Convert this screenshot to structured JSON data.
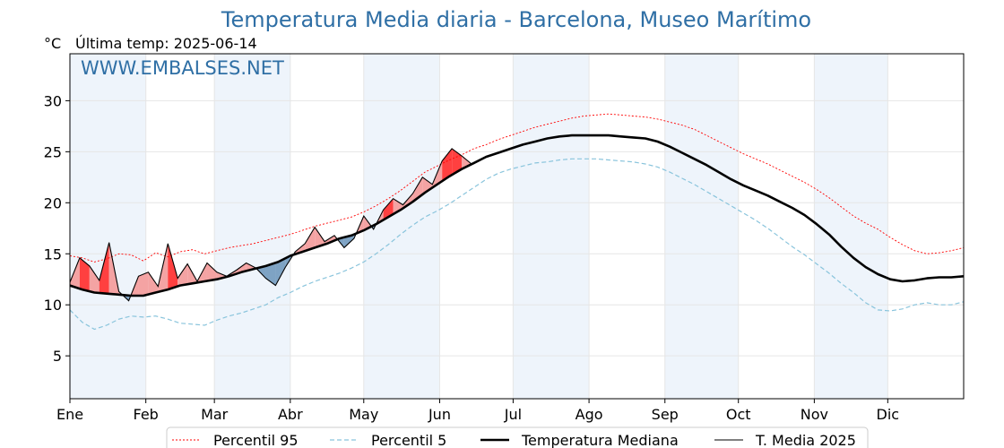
{
  "title": "Temperatura Media diaria - Barcelona, Museo Marítimo",
  "unit": "°C",
  "last_temp_label": "Última temp: 2025-06-14",
  "watermark": "WWW.EMBALSES.NET",
  "chart_data": {
    "type": "line",
    "title": "Temperatura Media diaria - Barcelona, Museo Marítimo",
    "ylabel": "°C",
    "ylim": [
      0.8,
      34.6
    ],
    "xlim": [
      1,
      366
    ],
    "yticks": [
      5,
      10,
      15,
      20,
      25,
      30
    ],
    "months": [
      "Ene",
      "Feb",
      "Mar",
      "Abr",
      "May",
      "Jun",
      "Jul",
      "Ago",
      "Sep",
      "Oct",
      "Nov",
      "Dic"
    ],
    "month_start_days": [
      1,
      32,
      60,
      91,
      121,
      152,
      182,
      213,
      244,
      274,
      305,
      335
    ],
    "grid": true,
    "legend_position": "bottom",
    "colors": {
      "p95": "#ff0000",
      "p5": "#89c4dc",
      "median": "#000000",
      "current": "#000000",
      "fill_above": "#f4a3a3",
      "fill_above_dark": "#ff4040",
      "fill_below": "#7ea3c4",
      "month_band": "#eef4fb",
      "title": "#2f6fa5"
    },
    "series": [
      {
        "name": "Percentil 95",
        "style": "dotted-red",
        "x": [
          1,
          6,
          11,
          16,
          21,
          26,
          31,
          36,
          41,
          46,
          51,
          56,
          61,
          66,
          71,
          76,
          81,
          86,
          91,
          96,
          101,
          106,
          111,
          116,
          121,
          126,
          131,
          136,
          141,
          146,
          151,
          156,
          161,
          166,
          171,
          176,
          181,
          186,
          191,
          196,
          201,
          206,
          211,
          216,
          221,
          226,
          231,
          236,
          241,
          246,
          251,
          256,
          261,
          266,
          271,
          276,
          281,
          286,
          291,
          296,
          301,
          306,
          311,
          316,
          321,
          326,
          331,
          336,
          341,
          346,
          351,
          356,
          361,
          366
        ],
        "values": [
          14.8,
          14.6,
          14.2,
          14.5,
          15.0,
          14.9,
          14.3,
          15.1,
          14.7,
          15.2,
          15.4,
          15.0,
          15.3,
          15.6,
          15.8,
          16.0,
          16.3,
          16.6,
          16.9,
          17.3,
          17.7,
          18.0,
          18.3,
          18.6,
          19.1,
          19.7,
          20.4,
          21.2,
          22.1,
          23.0,
          23.6,
          24.2,
          24.7,
          25.3,
          25.7,
          26.2,
          26.6,
          27.0,
          27.4,
          27.7,
          28.0,
          28.3,
          28.5,
          28.6,
          28.7,
          28.6,
          28.5,
          28.4,
          28.2,
          27.9,
          27.6,
          27.2,
          26.6,
          26.0,
          25.4,
          24.8,
          24.3,
          23.8,
          23.2,
          22.6,
          22.0,
          21.3,
          20.5,
          19.6,
          18.7,
          18.0,
          17.4,
          16.6,
          15.9,
          15.3,
          15.0,
          15.1,
          15.3,
          15.6
        ]
      },
      {
        "name": "Percentil 5",
        "style": "dashed-lightblue",
        "x": [
          1,
          6,
          11,
          16,
          21,
          26,
          31,
          36,
          41,
          46,
          51,
          56,
          61,
          66,
          71,
          76,
          81,
          86,
          91,
          96,
          101,
          106,
          111,
          116,
          121,
          126,
          131,
          136,
          141,
          146,
          151,
          156,
          161,
          166,
          171,
          176,
          181,
          186,
          191,
          196,
          201,
          206,
          211,
          216,
          221,
          226,
          231,
          236,
          241,
          246,
          251,
          256,
          261,
          266,
          271,
          276,
          281,
          286,
          291,
          296,
          301,
          306,
          311,
          316,
          321,
          326,
          331,
          336,
          341,
          346,
          351,
          356,
          361,
          366
        ],
        "values": [
          9.5,
          8.3,
          7.6,
          8.0,
          8.6,
          8.9,
          8.8,
          8.9,
          8.6,
          8.2,
          8.1,
          8.0,
          8.5,
          8.9,
          9.2,
          9.6,
          10.0,
          10.7,
          11.2,
          11.8,
          12.3,
          12.7,
          13.1,
          13.6,
          14.2,
          15.0,
          15.9,
          16.9,
          17.8,
          18.6,
          19.2,
          19.9,
          20.7,
          21.5,
          22.3,
          22.9,
          23.3,
          23.6,
          23.9,
          24.0,
          24.2,
          24.3,
          24.3,
          24.3,
          24.2,
          24.1,
          24.0,
          23.8,
          23.5,
          23.0,
          22.4,
          21.8,
          21.1,
          20.4,
          19.7,
          19.0,
          18.3,
          17.5,
          16.6,
          15.7,
          14.9,
          14.0,
          13.1,
          12.1,
          11.2,
          10.2,
          9.5,
          9.4,
          9.6,
          10.0,
          10.2,
          10.0,
          10.0,
          10.3
        ]
      },
      {
        "name": "Temperatura Mediana",
        "style": "thick-black",
        "x": [
          1,
          6,
          11,
          16,
          21,
          26,
          31,
          36,
          41,
          46,
          51,
          56,
          61,
          66,
          71,
          76,
          81,
          86,
          91,
          96,
          101,
          106,
          111,
          116,
          121,
          126,
          131,
          136,
          141,
          146,
          151,
          156,
          161,
          166,
          171,
          176,
          181,
          186,
          191,
          196,
          201,
          206,
          211,
          216,
          221,
          226,
          231,
          236,
          241,
          246,
          251,
          256,
          261,
          266,
          271,
          276,
          281,
          286,
          291,
          296,
          301,
          306,
          311,
          316,
          321,
          326,
          331,
          336,
          341,
          346,
          351,
          356,
          361,
          366
        ],
        "values": [
          11.9,
          11.5,
          11.2,
          11.1,
          11.0,
          10.9,
          10.9,
          11.2,
          11.5,
          11.9,
          12.1,
          12.3,
          12.5,
          12.8,
          13.2,
          13.5,
          13.8,
          14.2,
          14.8,
          15.2,
          15.6,
          16.0,
          16.5,
          16.8,
          17.3,
          17.9,
          18.6,
          19.3,
          20.1,
          21.0,
          21.8,
          22.6,
          23.3,
          23.9,
          24.5,
          24.9,
          25.3,
          25.7,
          26.0,
          26.3,
          26.5,
          26.6,
          26.6,
          26.6,
          26.6,
          26.5,
          26.4,
          26.3,
          26.0,
          25.5,
          24.9,
          24.3,
          23.7,
          23.0,
          22.3,
          21.7,
          21.2,
          20.7,
          20.1,
          19.5,
          18.8,
          17.9,
          16.9,
          15.7,
          14.6,
          13.7,
          13.0,
          12.5,
          12.3,
          12.4,
          12.6,
          12.7,
          12.7,
          12.8
        ]
      },
      {
        "name": "T. Media 2025",
        "style": "thin-black",
        "x": [
          1,
          5,
          9,
          13,
          17,
          21,
          25,
          29,
          33,
          37,
          41,
          45,
          49,
          53,
          57,
          61,
          65,
          69,
          73,
          77,
          81,
          85,
          89,
          93,
          97,
          101,
          105,
          109,
          113,
          117,
          121,
          125,
          129,
          133,
          137,
          141,
          145,
          149,
          153,
          157,
          161,
          165
        ],
        "values": [
          12.2,
          14.6,
          13.8,
          12.4,
          16.1,
          11.3,
          10.4,
          12.8,
          13.2,
          11.8,
          16.0,
          12.6,
          14.0,
          12.3,
          14.1,
          13.2,
          12.8,
          13.4,
          14.1,
          13.6,
          12.6,
          11.9,
          13.7,
          15.2,
          16.0,
          17.6,
          16.2,
          16.8,
          15.6,
          16.5,
          18.7,
          17.4,
          19.3,
          20.4,
          19.8,
          20.9,
          22.5,
          21.8,
          24.1,
          25.3,
          24.6,
          23.8
        ]
      }
    ]
  },
  "legend": [
    {
      "label": "Percentil 95",
      "style": "dotted-red"
    },
    {
      "label": "Percentil 5",
      "style": "dashed-lightblue"
    },
    {
      "label": "Temperatura Mediana",
      "style": "thick-black"
    },
    {
      "label": "T. Media 2025",
      "style": "thin-black"
    }
  ]
}
